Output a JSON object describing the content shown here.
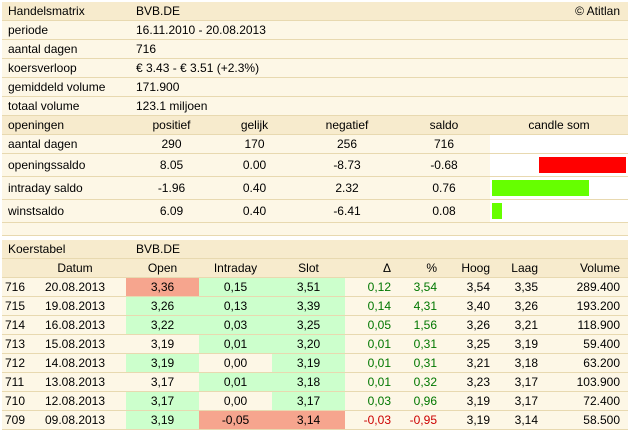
{
  "matrix": {
    "title": "Handelsmatrix",
    "symbol": "BVB.DE",
    "copyright": "© Atitlan",
    "info": [
      {
        "label": "periode",
        "value": "16.11.2010 - 20.08.2013"
      },
      {
        "label": "aantal dagen",
        "value": "716"
      },
      {
        "label": "koersverloop",
        "value": " € 3.43 - € 3.51 (+2.3%)"
      },
      {
        "label": "gemiddeld volume",
        "value": "171.900"
      },
      {
        "label": "totaal volume",
        "value": "123.1 miljoen"
      }
    ],
    "headers": [
      "openingen",
      "positief",
      "gelijk",
      "negatief",
      "saldo",
      "candle som"
    ],
    "rows": [
      {
        "label": "aantal dagen",
        "pos": "290",
        "eq": "170",
        "neg": "256",
        "saldo": "716",
        "bar": null
      },
      {
        "label": "openingssaldo",
        "pos": "8.05",
        "eq": "0.00",
        "neg": "-8.73",
        "saldo": "-0.68",
        "bar": {
          "value": -0.68,
          "color": "#ff0000"
        }
      },
      {
        "label": "intraday saldo",
        "pos": "-1.96",
        "eq": "0.40",
        "neg": "2.32",
        "saldo": "0.76",
        "bar": {
          "value": 0.76,
          "color": "#66ff00"
        }
      },
      {
        "label": "winstsaldo",
        "pos": "6.09",
        "eq": "0.40",
        "neg": "-6.41",
        "saldo": "0.08",
        "bar": {
          "value": 0.08,
          "color": "#66ff00"
        }
      }
    ]
  },
  "koers": {
    "title": "Koerstabel",
    "symbol": "BVB.DE",
    "headers": [
      "",
      "Datum",
      "Open",
      "Intraday",
      "Slot",
      "Δ",
      "%",
      "Hoog",
      "Laag",
      "Volume"
    ],
    "rows": [
      {
        "nr": "716",
        "datum": "20.08.2013",
        "open": "3,36",
        "open_c": "red",
        "intra": "0,15",
        "intra_c": "green",
        "slot": "3,51",
        "slot_c": "green",
        "delta": "0,12",
        "pct": "3,54",
        "sign": "pos",
        "hoog": "3,54",
        "laag": "3,35",
        "vol": "289.400"
      },
      {
        "nr": "715",
        "datum": "19.08.2013",
        "open": "3,26",
        "open_c": "green",
        "intra": "0,13",
        "intra_c": "green",
        "slot": "3,39",
        "slot_c": "green",
        "delta": "0,14",
        "pct": "4,31",
        "sign": "pos",
        "hoog": "3,40",
        "laag": "3,26",
        "vol": "193.200"
      },
      {
        "nr": "714",
        "datum": "16.08.2013",
        "open": "3,22",
        "open_c": "green",
        "intra": "0,03",
        "intra_c": "green",
        "slot": "3,25",
        "slot_c": "green",
        "delta": "0,05",
        "pct": "1,56",
        "sign": "pos",
        "hoog": "3,26",
        "laag": "3,21",
        "vol": "118.900"
      },
      {
        "nr": "713",
        "datum": "15.08.2013",
        "open": "3,19",
        "open_c": "",
        "intra": "0,01",
        "intra_c": "green",
        "slot": "3,20",
        "slot_c": "green",
        "delta": "0,01",
        "pct": "0,31",
        "sign": "pos",
        "hoog": "3,25",
        "laag": "3,19",
        "vol": "59.400"
      },
      {
        "nr": "712",
        "datum": "14.08.2013",
        "open": "3,19",
        "open_c": "green",
        "intra": "0,00",
        "intra_c": "",
        "slot": "3,19",
        "slot_c": "green",
        "delta": "0,01",
        "pct": "0,31",
        "sign": "pos",
        "hoog": "3,21",
        "laag": "3,18",
        "vol": "63.200"
      },
      {
        "nr": "711",
        "datum": "13.08.2013",
        "open": "3,17",
        "open_c": "",
        "intra": "0,01",
        "intra_c": "green",
        "slot": "3,18",
        "slot_c": "green",
        "delta": "0,01",
        "pct": "0,32",
        "sign": "pos",
        "hoog": "3,23",
        "laag": "3,17",
        "vol": "103.900"
      },
      {
        "nr": "710",
        "datum": "12.08.2013",
        "open": "3,17",
        "open_c": "green",
        "intra": "0,00",
        "intra_c": "",
        "slot": "3,17",
        "slot_c": "green",
        "delta": "0,03",
        "pct": "0,96",
        "sign": "pos",
        "hoog": "3,19",
        "laag": "3,17",
        "vol": "72.400"
      },
      {
        "nr": "709",
        "datum": "09.08.2013",
        "open": "3,19",
        "open_c": "green",
        "intra": "-0,05",
        "intra_c": "red",
        "slot": "3,14",
        "slot_c": "red",
        "delta": "-0,03",
        "pct": "-0,95",
        "sign": "neg",
        "hoog": "3,19",
        "laag": "3,14",
        "vol": "58.500"
      }
    ]
  }
}
